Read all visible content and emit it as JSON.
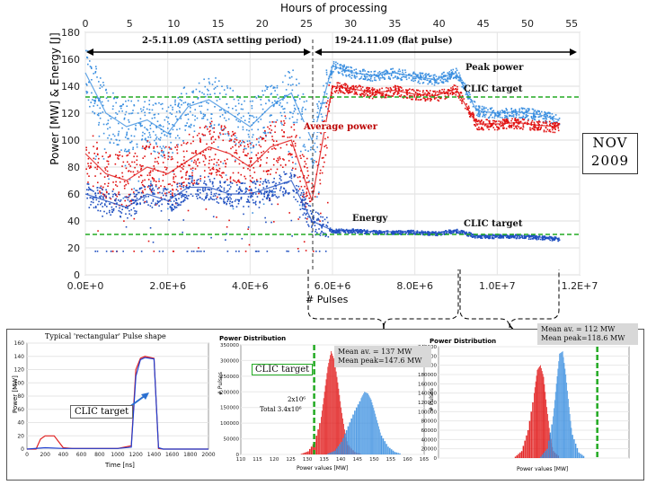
{
  "chart_data": [
    {
      "type": "scatter",
      "title": "Hours of processing",
      "xlabel": "# Pulses",
      "ylabel": "Power [MW] & Energy [J]",
      "xlim": [
        0,
        12000000
      ],
      "ylim": [
        0,
        180
      ],
      "x_ticks": [
        "0.0E+0",
        "2.0E+6",
        "4.0E+6",
        "6.0E+6",
        "8.0E+6",
        "1.0E+7",
        "1.2E+7"
      ],
      "y_ticks": [
        "0",
        "20",
        "40",
        "60",
        "80",
        "100",
        "120",
        "140",
        "160",
        "180"
      ],
      "top_axis_ticks": [
        "0",
        "5",
        "10",
        "15",
        "20",
        "25",
        "30",
        "35",
        "40",
        "45",
        "50",
        "55"
      ],
      "periods": [
        {
          "label": "2-5.11.09 (ASTA setting period)",
          "x_range": [
            0,
            5900000
          ]
        },
        {
          "label": "19-24.11.09 (flat pulse)",
          "x_range": [
            5900000,
            11600000
          ]
        }
      ],
      "hlines": [
        {
          "label": "CLIC target",
          "y": 132,
          "color": "#22aa22"
        },
        {
          "label": "CLIC target",
          "y": 30,
          "color": "#22aa22"
        }
      ],
      "series": [
        {
          "name": "Peak power",
          "color": "#3b8fe0",
          "x": [
            0,
            500000,
            1000000,
            1500000,
            2000000,
            2500000,
            3000000,
            3500000,
            4000000,
            4500000,
            5000000,
            5500000,
            6000000,
            6500000,
            7000000,
            7500000,
            8000000,
            8500000,
            9000000,
            9500000,
            10000000,
            10500000,
            11000000,
            11500000
          ],
          "y": [
            150,
            120,
            110,
            115,
            105,
            125,
            130,
            120,
            110,
            125,
            135,
            100,
            155,
            150,
            148,
            150,
            147,
            145,
            150,
            122,
            120,
            121,
            119,
            115
          ]
        },
        {
          "name": "Average power",
          "color": "#e01010",
          "x": [
            0,
            500000,
            1000000,
            1500000,
            2000000,
            2500000,
            3000000,
            3500000,
            4000000,
            4500000,
            5000000,
            5500000,
            6000000,
            6500000,
            7000000,
            7500000,
            8000000,
            8500000,
            9000000,
            9500000,
            10000000,
            10500000,
            11000000,
            11500000
          ],
          "y": [
            90,
            75,
            70,
            80,
            75,
            85,
            95,
            90,
            80,
            95,
            100,
            55,
            140,
            138,
            135,
            137,
            134,
            133,
            138,
            112,
            112,
            113,
            111,
            110
          ]
        },
        {
          "name": "Energy",
          "color": "#1f4fc0",
          "x": [
            0,
            500000,
            1000000,
            1500000,
            2000000,
            2500000,
            3000000,
            3500000,
            4000000,
            4500000,
            5000000,
            5500000,
            6000000,
            6500000,
            7000000,
            7500000,
            8000000,
            8500000,
            9000000,
            9500000,
            10000000,
            10500000,
            11000000,
            11500000
          ],
          "y": [
            60,
            55,
            50,
            60,
            55,
            65,
            65,
            60,
            60,
            65,
            70,
            40,
            33,
            33,
            32,
            32,
            32,
            31,
            33,
            29,
            29,
            29,
            28,
            27
          ]
        }
      ],
      "annotations": [
        "Peak power",
        "CLIC target",
        "Average power",
        "Energy",
        "CLIC target"
      ]
    },
    {
      "type": "line",
      "title": "Typical 'rectangular' Pulse shape",
      "xlabel": "Time [ns]",
      "ylabel": "Power [MW]",
      "xlim": [
        0,
        2000
      ],
      "ylim": [
        0,
        160
      ],
      "x_ticks": [
        "0",
        "200",
        "400",
        "600",
        "800",
        "1000",
        "1200",
        "1400",
        "1600",
        "1800",
        "2000"
      ],
      "y_ticks": [
        "0",
        "10",
        "20",
        "30",
        "40",
        "50",
        "60",
        "70",
        "80",
        "90",
        "100",
        "110",
        "120",
        "130",
        "140",
        "150",
        "160"
      ],
      "annotation": "CLIC target",
      "series": [
        {
          "name": "",
          "color": "#e02020",
          "x": [
            0,
            100,
            150,
            200,
            300,
            400,
            500,
            800,
            1000,
            1150,
            1200,
            1250,
            1300,
            1400,
            1450,
            1500,
            1700,
            2000
          ],
          "y": [
            0,
            0,
            15,
            20,
            20,
            2,
            1,
            1,
            1,
            5,
            120,
            137,
            140,
            137,
            1,
            0,
            0,
            0
          ]
        },
        {
          "name": "",
          "color": "#2040d0",
          "x": [
            0,
            200,
            400,
            800,
            1000,
            1150,
            1200,
            1250,
            1300,
            1400,
            1450,
            1500,
            2000
          ],
          "y": [
            0,
            2,
            1,
            1,
            1,
            3,
            110,
            135,
            138,
            136,
            2,
            0,
            0
          ]
        }
      ]
    },
    {
      "type": "bar",
      "title": "Power Distribution",
      "xlabel": "Power values [MW]",
      "ylabel": "# Pulses",
      "xlim": [
        110,
        165
      ],
      "ylim": [
        0,
        350000
      ],
      "x_ticks": [
        "110",
        "115",
        "120",
        "125",
        "130",
        "135",
        "140",
        "145",
        "150",
        "155",
        "160",
        "165"
      ],
      "y_ticks": [
        "0",
        "50000",
        "100000",
        "150000",
        "200000",
        "250000",
        "300000",
        "350000"
      ],
      "annotations": [
        "Mean av. = 137 MW Mean peak=147.6 MW",
        "CLIC target",
        "2x10⁶",
        "Total 3.4x10⁶"
      ],
      "target_x": 132,
      "series": [
        {
          "name": "",
          "color": "#e01010",
          "x": [
            128,
            130,
            132,
            134,
            135,
            136,
            137,
            138,
            139,
            140,
            141,
            142,
            144,
            146
          ],
          "values": [
            2000,
            10000,
            40000,
            120000,
            200000,
            280000,
            330000,
            300000,
            230000,
            150000,
            80000,
            30000,
            8000,
            1000
          ]
        },
        {
          "name": "",
          "color": "#3b8fe0",
          "x": [
            136,
            138,
            140,
            142,
            144,
            146,
            147,
            148,
            149,
            150,
            151,
            152,
            154,
            156,
            158
          ],
          "values": [
            3000,
            12000,
            40000,
            90000,
            140000,
            180000,
            200000,
            195000,
            175000,
            140000,
            100000,
            60000,
            25000,
            8000,
            2000
          ]
        }
      ]
    },
    {
      "type": "bar",
      "title": "Power Distribution",
      "xlabel": "Power values [MW]",
      "ylabel": "# Pulses",
      "xlim": [
        80,
        140
      ],
      "ylim": [
        0,
        240000
      ],
      "y_ticks": [
        "0",
        "20000",
        "40000",
        "60000",
        "80000",
        "100000",
        "120000",
        "140000",
        "160000",
        "180000",
        "200000",
        "220000",
        "240000"
      ],
      "annotations": [
        "Mean av. = 112 MW Mean peak=118.6 MW"
      ],
      "target_x": 130,
      "series": [
        {
          "name": "",
          "color": "#e01010",
          "x": [
            104,
            106,
            108,
            110,
            111,
            112,
            113,
            114,
            115,
            116,
            118
          ],
          "values": [
            3000,
            15000,
            60000,
            140000,
            190000,
            200000,
            175000,
            110000,
            50000,
            15000,
            2000
          ]
        },
        {
          "name": "",
          "color": "#3b8fe0",
          "x": [
            112,
            114,
            116,
            117,
            118,
            119,
            120,
            121,
            122,
            124,
            126
          ],
          "values": [
            3000,
            20000,
            90000,
            160000,
            225000,
            230000,
            180000,
            110000,
            50000,
            12000,
            2000
          ]
        }
      ]
    }
  ],
  "main_chart": {
    "top_axis_title": "Hours of processing",
    "y_axis_title": "Power [MW] & Energy [J]",
    "x_axis_title": "# Pulses",
    "period1": "2-5.11.09 (ASTA setting period)",
    "period2": "19-24.11.09 (flat pulse)",
    "lbl_peak": "Peak power",
    "lbl_clic_top": "CLIC target",
    "lbl_avg": "Average power",
    "lbl_energy": "Energy",
    "lbl_clic_bottom": "CLIC target",
    "nov_line1": "NOV",
    "nov_line2": "2009"
  },
  "inset_pulse": {
    "title": "Typical 'rectangular' Pulse shape",
    "clic": "CLIC target",
    "xlabel": "Time [ns]",
    "ylabel": "Power [MW]"
  },
  "inset_dist1": {
    "title": "Power Distribution",
    "callout": "Mean av. = 137 MW Mean peak=147.6 MW",
    "clic": "CLIC target",
    "count1": "2x10⁶",
    "count2": "Total 3.4x10⁶",
    "xlabel": "Power values [MW]",
    "ylabel": "# Pulses"
  },
  "inset_dist2": {
    "title": "Power Distribution",
    "callout_l1": "Mean av. = 112 MW",
    "callout_l2": "Mean peak=118.6 MW",
    "xlabel": "Power values [MW]",
    "ylabel": "# Pulses"
  },
  "colors": {
    "peak": "#3b8fe0",
    "avg": "#e01010",
    "energy": "#1f4fc0",
    "target": "#22aa22"
  }
}
